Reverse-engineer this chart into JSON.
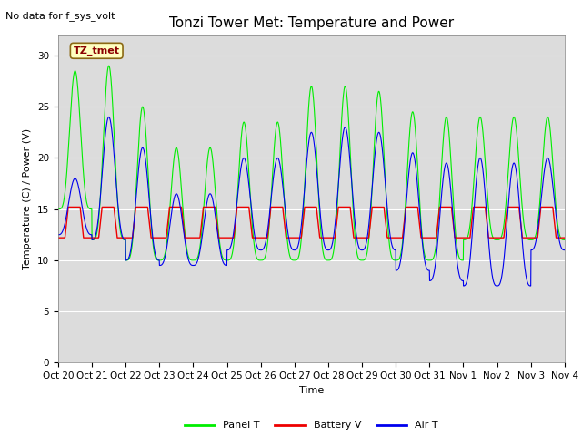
{
  "title": "Tonzi Tower Met: Temperature and Power",
  "no_data_text": "No data for f_sys_volt",
  "xlabel": "Time",
  "ylabel": "Temperature (C) / Power (V)",
  "xlim_start": 0,
  "xlim_end": 15,
  "ylim": [
    0,
    32
  ],
  "yticks": [
    0,
    5,
    10,
    15,
    20,
    25,
    30
  ],
  "xtick_labels": [
    "Oct 20",
    "Oct 21",
    "Oct 22",
    "Oct 23",
    "Oct 24",
    "Oct 25",
    "Oct 26",
    "Oct 27",
    "Oct 28",
    "Oct 29",
    "Oct 30",
    "Oct 31",
    "Nov 1",
    "Nov 2",
    "Nov 3",
    "Nov 4"
  ],
  "bg_color": "#dcdcdc",
  "panel_t_color": "#00ee00",
  "battery_v_color": "#ee0000",
  "air_t_color": "#0000ee",
  "legend_labels": [
    "Panel T",
    "Battery V",
    "Air T"
  ],
  "annotation_label": "TZ_tmet",
  "title_fontsize": 11,
  "axis_label_fontsize": 8,
  "tick_fontsize": 7.5,
  "legend_fontsize": 8,
  "no_data_fontsize": 8
}
